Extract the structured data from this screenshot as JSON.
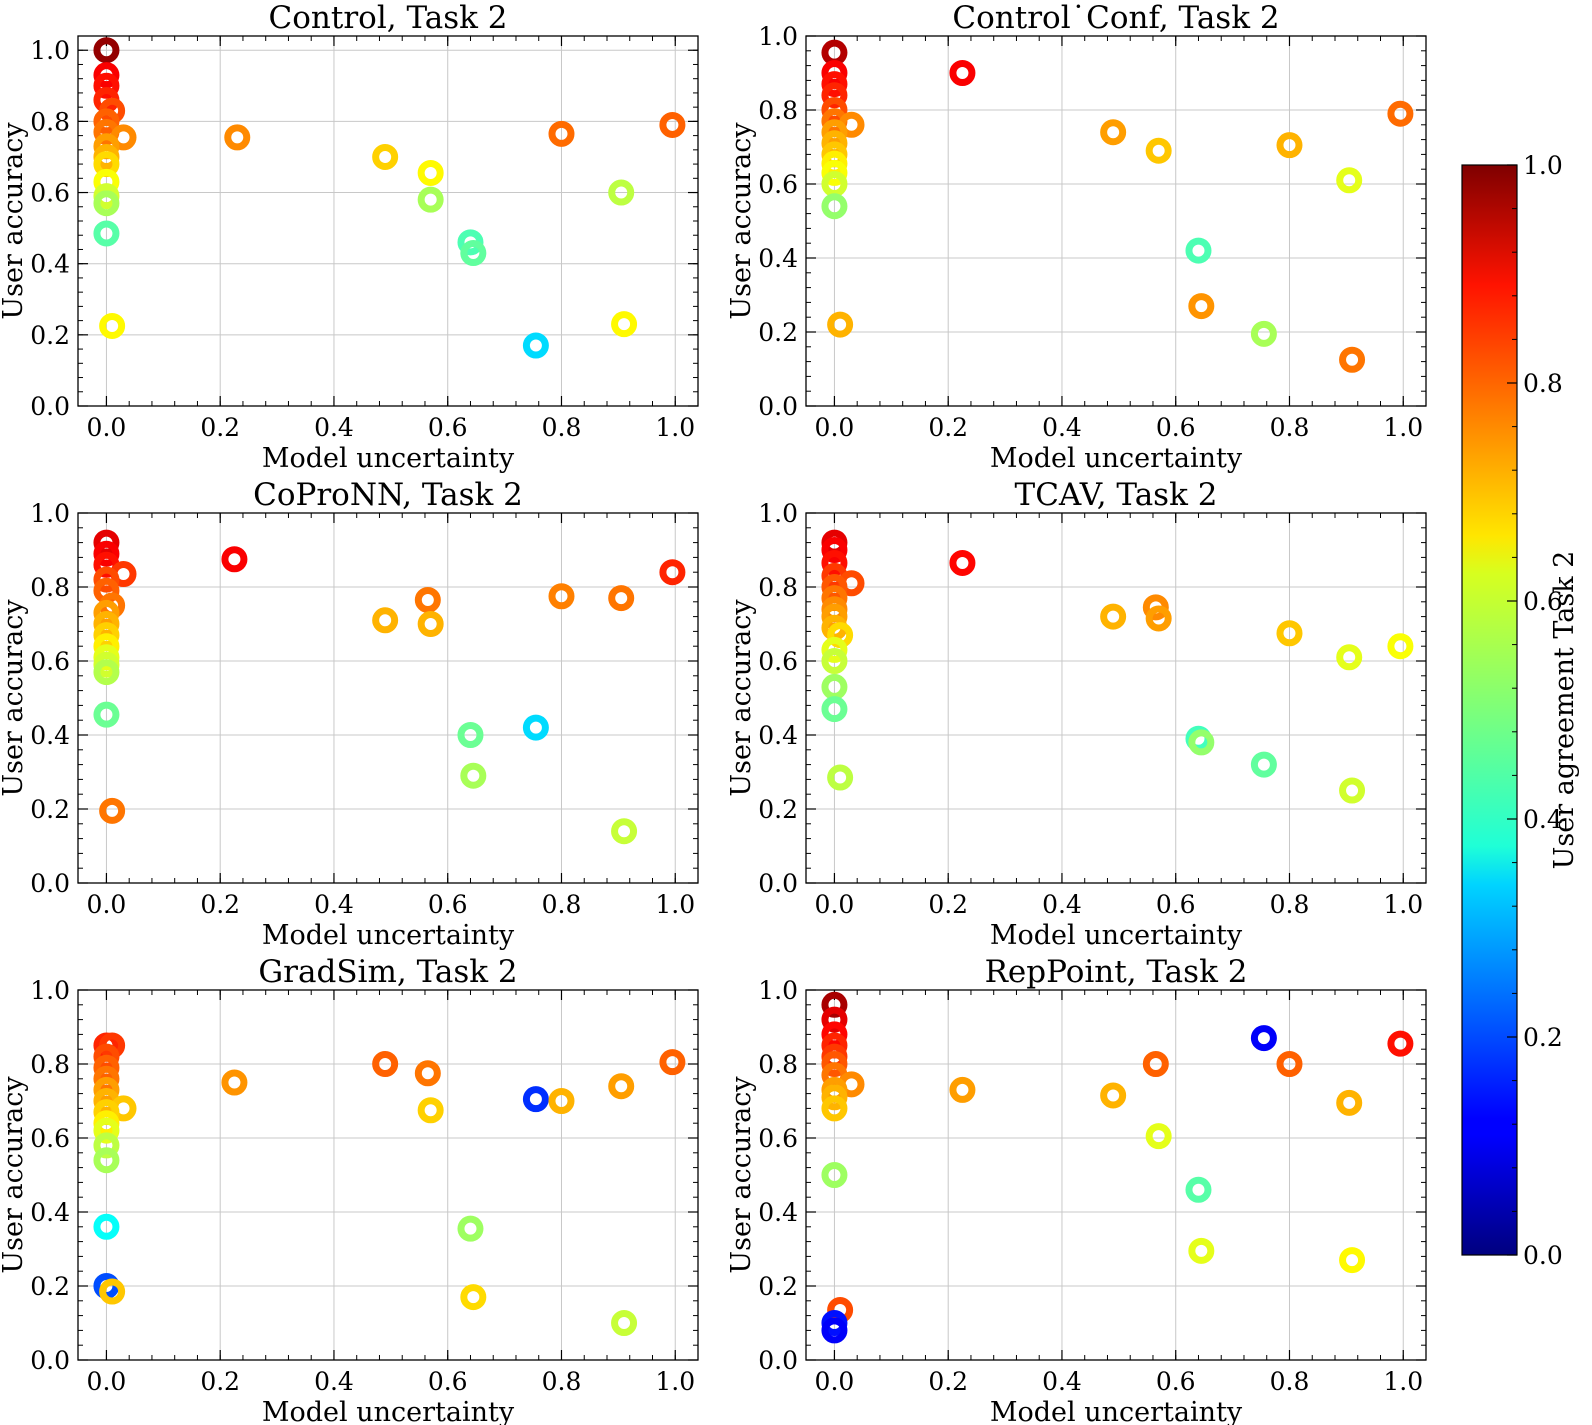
{
  "chart_data": [
    {
      "type": "scatter",
      "title": "Control, Task 2",
      "xlabel": "Model uncertainty",
      "ylabel": "User accuracy",
      "xlim": [
        -0.05,
        1.04
      ],
      "ylim": [
        0.0,
        1.04
      ],
      "xticks": [
        "0.0",
        "0.2",
        "0.4",
        "0.6",
        "0.8",
        "1.0"
      ],
      "yticks": [
        "0.0",
        "0.2",
        "0.4",
        "0.6",
        "0.8",
        "1.0"
      ],
      "grid": true,
      "points": [
        {
          "x": 0.0,
          "y": 1.0,
          "c": 0.98
        },
        {
          "x": 0.0,
          "y": 0.93,
          "c": 0.88
        },
        {
          "x": 0.0,
          "y": 0.9,
          "c": 0.86
        },
        {
          "x": 0.0,
          "y": 0.86,
          "c": 0.84
        },
        {
          "x": 0.01,
          "y": 0.83,
          "c": 0.8
        },
        {
          "x": 0.0,
          "y": 0.8,
          "c": 0.78
        },
        {
          "x": 0.0,
          "y": 0.77,
          "c": 0.76
        },
        {
          "x": 0.03,
          "y": 0.755,
          "c": 0.74
        },
        {
          "x": 0.0,
          "y": 0.73,
          "c": 0.72
        },
        {
          "x": 0.0,
          "y": 0.7,
          "c": 0.7
        },
        {
          "x": 0.0,
          "y": 0.68,
          "c": 0.66
        },
        {
          "x": 0.0,
          "y": 0.63,
          "c": 0.62
        },
        {
          "x": 0.0,
          "y": 0.59,
          "c": 0.58
        },
        {
          "x": 0.0,
          "y": 0.57,
          "c": 0.54
        },
        {
          "x": 0.0,
          "y": 0.485,
          "c": 0.46
        },
        {
          "x": 0.01,
          "y": 0.225,
          "c": 0.63
        },
        {
          "x": 0.23,
          "y": 0.755,
          "c": 0.74
        },
        {
          "x": 0.49,
          "y": 0.7,
          "c": 0.67
        },
        {
          "x": 0.57,
          "y": 0.655,
          "c": 0.63
        },
        {
          "x": 0.57,
          "y": 0.58,
          "c": 0.54
        },
        {
          "x": 0.64,
          "y": 0.46,
          "c": 0.45
        },
        {
          "x": 0.645,
          "y": 0.43,
          "c": 0.47
        },
        {
          "x": 0.755,
          "y": 0.17,
          "c": 0.34
        },
        {
          "x": 0.8,
          "y": 0.765,
          "c": 0.77
        },
        {
          "x": 0.905,
          "y": 0.6,
          "c": 0.56
        },
        {
          "x": 0.91,
          "y": 0.23,
          "c": 0.63
        },
        {
          "x": 0.995,
          "y": 0.79,
          "c": 0.78
        }
      ]
    },
    {
      "type": "scatter",
      "title": "Control˙Conf, Task 2",
      "xlabel": "Model uncertainty",
      "ylabel": "User accuracy",
      "xlim": [
        -0.05,
        1.04
      ],
      "ylim": [
        0.0,
        1.0
      ],
      "xticks": [
        "0.0",
        "0.2",
        "0.4",
        "0.6",
        "0.8",
        "1.0"
      ],
      "yticks": [
        "0.0",
        "0.2",
        "0.4",
        "0.6",
        "0.8",
        "1.0"
      ],
      "grid": true,
      "points": [
        {
          "x": 0.0,
          "y": 0.955,
          "c": 0.95
        },
        {
          "x": 0.0,
          "y": 0.9,
          "c": 0.88
        },
        {
          "x": 0.0,
          "y": 0.87,
          "c": 0.86
        },
        {
          "x": 0.0,
          "y": 0.84,
          "c": 0.84
        },
        {
          "x": 0.0,
          "y": 0.8,
          "c": 0.8
        },
        {
          "x": 0.0,
          "y": 0.77,
          "c": 0.76
        },
        {
          "x": 0.03,
          "y": 0.76,
          "c": 0.74
        },
        {
          "x": 0.0,
          "y": 0.74,
          "c": 0.72
        },
        {
          "x": 0.0,
          "y": 0.71,
          "c": 0.7
        },
        {
          "x": 0.0,
          "y": 0.68,
          "c": 0.68
        },
        {
          "x": 0.0,
          "y": 0.655,
          "c": 0.64
        },
        {
          "x": 0.0,
          "y": 0.63,
          "c": 0.62
        },
        {
          "x": 0.0,
          "y": 0.6,
          "c": 0.58
        },
        {
          "x": 0.0,
          "y": 0.54,
          "c": 0.52
        },
        {
          "x": 0.01,
          "y": 0.22,
          "c": 0.7
        },
        {
          "x": 0.225,
          "y": 0.9,
          "c": 0.88
        },
        {
          "x": 0.49,
          "y": 0.74,
          "c": 0.72
        },
        {
          "x": 0.57,
          "y": 0.69,
          "c": 0.68
        },
        {
          "x": 0.64,
          "y": 0.42,
          "c": 0.45
        },
        {
          "x": 0.645,
          "y": 0.27,
          "c": 0.73
        },
        {
          "x": 0.755,
          "y": 0.195,
          "c": 0.54
        },
        {
          "x": 0.8,
          "y": 0.705,
          "c": 0.7
        },
        {
          "x": 0.905,
          "y": 0.61,
          "c": 0.6
        },
        {
          "x": 0.91,
          "y": 0.125,
          "c": 0.76
        },
        {
          "x": 0.995,
          "y": 0.79,
          "c": 0.77
        }
      ]
    },
    {
      "type": "scatter",
      "title": "CoProNN, Task 2",
      "xlabel": "Model uncertainty",
      "ylabel": "User accuracy",
      "xlim": [
        -0.05,
        1.04
      ],
      "ylim": [
        0.0,
        1.0
      ],
      "xticks": [
        "0.0",
        "0.2",
        "0.4",
        "0.6",
        "0.8",
        "1.0"
      ],
      "yticks": [
        "0.0",
        "0.2",
        "0.4",
        "0.6",
        "0.8",
        "1.0"
      ],
      "grid": true,
      "points": [
        {
          "x": 0.0,
          "y": 0.92,
          "c": 0.9
        },
        {
          "x": 0.0,
          "y": 0.89,
          "c": 0.88
        },
        {
          "x": 0.0,
          "y": 0.86,
          "c": 0.86
        },
        {
          "x": 0.03,
          "y": 0.835,
          "c": 0.82
        },
        {
          "x": 0.0,
          "y": 0.82,
          "c": 0.8
        },
        {
          "x": 0.0,
          "y": 0.79,
          "c": 0.78
        },
        {
          "x": 0.01,
          "y": 0.75,
          "c": 0.76
        },
        {
          "x": 0.0,
          "y": 0.73,
          "c": 0.72
        },
        {
          "x": 0.0,
          "y": 0.7,
          "c": 0.7
        },
        {
          "x": 0.0,
          "y": 0.67,
          "c": 0.67
        },
        {
          "x": 0.0,
          "y": 0.64,
          "c": 0.64
        },
        {
          "x": 0.0,
          "y": 0.61,
          "c": 0.6
        },
        {
          "x": 0.0,
          "y": 0.59,
          "c": 0.58
        },
        {
          "x": 0.0,
          "y": 0.57,
          "c": 0.55
        },
        {
          "x": 0.0,
          "y": 0.455,
          "c": 0.48
        },
        {
          "x": 0.01,
          "y": 0.195,
          "c": 0.76
        },
        {
          "x": 0.225,
          "y": 0.875,
          "c": 0.88
        },
        {
          "x": 0.49,
          "y": 0.71,
          "c": 0.7
        },
        {
          "x": 0.565,
          "y": 0.765,
          "c": 0.76
        },
        {
          "x": 0.57,
          "y": 0.7,
          "c": 0.7
        },
        {
          "x": 0.64,
          "y": 0.4,
          "c": 0.48
        },
        {
          "x": 0.645,
          "y": 0.29,
          "c": 0.54
        },
        {
          "x": 0.755,
          "y": 0.42,
          "c": 0.34
        },
        {
          "x": 0.8,
          "y": 0.775,
          "c": 0.75
        },
        {
          "x": 0.905,
          "y": 0.77,
          "c": 0.76
        },
        {
          "x": 0.91,
          "y": 0.14,
          "c": 0.57
        },
        {
          "x": 0.995,
          "y": 0.84,
          "c": 0.84
        }
      ]
    },
    {
      "type": "scatter",
      "title": "TCAV, Task 2",
      "xlabel": "Model uncertainty",
      "ylabel": "User accuracy",
      "xlim": [
        -0.05,
        1.04
      ],
      "ylim": [
        0.0,
        1.0
      ],
      "xticks": [
        "0.0",
        "0.2",
        "0.4",
        "0.6",
        "0.8",
        "1.0"
      ],
      "yticks": [
        "0.0",
        "0.2",
        "0.4",
        "0.6",
        "0.8",
        "1.0"
      ],
      "grid": true,
      "points": [
        {
          "x": 0.0,
          "y": 0.92,
          "c": 0.9
        },
        {
          "x": 0.0,
          "y": 0.9,
          "c": 0.88
        },
        {
          "x": 0.0,
          "y": 0.865,
          "c": 0.86
        },
        {
          "x": 0.0,
          "y": 0.83,
          "c": 0.82
        },
        {
          "x": 0.03,
          "y": 0.81,
          "c": 0.8
        },
        {
          "x": 0.0,
          "y": 0.8,
          "c": 0.79
        },
        {
          "x": 0.0,
          "y": 0.77,
          "c": 0.76
        },
        {
          "x": 0.0,
          "y": 0.74,
          "c": 0.74
        },
        {
          "x": 0.0,
          "y": 0.72,
          "c": 0.72
        },
        {
          "x": 0.0,
          "y": 0.69,
          "c": 0.7
        },
        {
          "x": 0.01,
          "y": 0.67,
          "c": 0.66
        },
        {
          "x": 0.0,
          "y": 0.63,
          "c": 0.6
        },
        {
          "x": 0.0,
          "y": 0.6,
          "c": 0.57
        },
        {
          "x": 0.0,
          "y": 0.53,
          "c": 0.53
        },
        {
          "x": 0.0,
          "y": 0.47,
          "c": 0.48
        },
        {
          "x": 0.01,
          "y": 0.285,
          "c": 0.56
        },
        {
          "x": 0.225,
          "y": 0.865,
          "c": 0.87
        },
        {
          "x": 0.49,
          "y": 0.72,
          "c": 0.7
        },
        {
          "x": 0.565,
          "y": 0.745,
          "c": 0.74
        },
        {
          "x": 0.57,
          "y": 0.715,
          "c": 0.72
        },
        {
          "x": 0.64,
          "y": 0.39,
          "c": 0.44
        },
        {
          "x": 0.645,
          "y": 0.38,
          "c": 0.52
        },
        {
          "x": 0.755,
          "y": 0.32,
          "c": 0.47
        },
        {
          "x": 0.8,
          "y": 0.675,
          "c": 0.68
        },
        {
          "x": 0.905,
          "y": 0.61,
          "c": 0.6
        },
        {
          "x": 0.91,
          "y": 0.25,
          "c": 0.58
        },
        {
          "x": 0.995,
          "y": 0.64,
          "c": 0.62
        }
      ]
    },
    {
      "type": "scatter",
      "title": "GradSim, Task 2",
      "xlabel": "Model uncertainty",
      "ylabel": "User accuracy",
      "xlim": [
        -0.05,
        1.04
      ],
      "ylim": [
        0.0,
        1.0
      ],
      "xticks": [
        "0.0",
        "0.2",
        "0.4",
        "0.6",
        "0.8",
        "1.0"
      ],
      "yticks": [
        "0.0",
        "0.2",
        "0.4",
        "0.6",
        "0.8",
        "1.0"
      ],
      "grid": true,
      "points": [
        {
          "x": 0.0,
          "y": 0.85,
          "c": 0.84
        },
        {
          "x": 0.01,
          "y": 0.85,
          "c": 0.82
        },
        {
          "x": 0.0,
          "y": 0.82,
          "c": 0.8
        },
        {
          "x": 0.0,
          "y": 0.79,
          "c": 0.78
        },
        {
          "x": 0.0,
          "y": 0.76,
          "c": 0.76
        },
        {
          "x": 0.0,
          "y": 0.73,
          "c": 0.72
        },
        {
          "x": 0.0,
          "y": 0.7,
          "c": 0.7
        },
        {
          "x": 0.03,
          "y": 0.68,
          "c": 0.68
        },
        {
          "x": 0.0,
          "y": 0.67,
          "c": 0.67
        },
        {
          "x": 0.0,
          "y": 0.64,
          "c": 0.64
        },
        {
          "x": 0.0,
          "y": 0.62,
          "c": 0.6
        },
        {
          "x": 0.0,
          "y": 0.58,
          "c": 0.56
        },
        {
          "x": 0.0,
          "y": 0.54,
          "c": 0.54
        },
        {
          "x": 0.0,
          "y": 0.36,
          "c": 0.38
        },
        {
          "x": 0.0,
          "y": 0.2,
          "c": 0.2
        },
        {
          "x": 0.01,
          "y": 0.185,
          "c": 0.68
        },
        {
          "x": 0.225,
          "y": 0.75,
          "c": 0.73
        },
        {
          "x": 0.49,
          "y": 0.8,
          "c": 0.78
        },
        {
          "x": 0.565,
          "y": 0.775,
          "c": 0.76
        },
        {
          "x": 0.57,
          "y": 0.675,
          "c": 0.67
        },
        {
          "x": 0.64,
          "y": 0.355,
          "c": 0.53
        },
        {
          "x": 0.645,
          "y": 0.17,
          "c": 0.66
        },
        {
          "x": 0.755,
          "y": 0.705,
          "c": 0.17
        },
        {
          "x": 0.8,
          "y": 0.7,
          "c": 0.7
        },
        {
          "x": 0.905,
          "y": 0.74,
          "c": 0.72
        },
        {
          "x": 0.91,
          "y": 0.1,
          "c": 0.57
        },
        {
          "x": 0.995,
          "y": 0.805,
          "c": 0.78
        }
      ]
    },
    {
      "type": "scatter",
      "title": "RepPoint, Task 2",
      "xlabel": "Model uncertainty",
      "ylabel": "User accuracy",
      "xlim": [
        -0.05,
        1.04
      ],
      "ylim": [
        0.0,
        1.0
      ],
      "xticks": [
        "0.0",
        "0.2",
        "0.4",
        "0.6",
        "0.8",
        "1.0"
      ],
      "yticks": [
        "0.0",
        "0.2",
        "0.4",
        "0.6",
        "0.8",
        "1.0"
      ],
      "grid": true,
      "points": [
        {
          "x": 0.0,
          "y": 0.96,
          "c": 0.96
        },
        {
          "x": 0.0,
          "y": 0.92,
          "c": 0.9
        },
        {
          "x": 0.0,
          "y": 0.88,
          "c": 0.87
        },
        {
          "x": 0.0,
          "y": 0.85,
          "c": 0.84
        },
        {
          "x": 0.0,
          "y": 0.82,
          "c": 0.82
        },
        {
          "x": 0.0,
          "y": 0.8,
          "c": 0.79
        },
        {
          "x": 0.0,
          "y": 0.77,
          "c": 0.76
        },
        {
          "x": 0.03,
          "y": 0.745,
          "c": 0.74
        },
        {
          "x": 0.0,
          "y": 0.73,
          "c": 0.72
        },
        {
          "x": 0.0,
          "y": 0.71,
          "c": 0.7
        },
        {
          "x": 0.0,
          "y": 0.68,
          "c": 0.68
        },
        {
          "x": 0.0,
          "y": 0.5,
          "c": 0.53
        },
        {
          "x": 0.01,
          "y": 0.135,
          "c": 0.8
        },
        {
          "x": 0.0,
          "y": 0.1,
          "c": 0.14
        },
        {
          "x": 0.0,
          "y": 0.08,
          "c": 0.12
        },
        {
          "x": 0.225,
          "y": 0.73,
          "c": 0.72
        },
        {
          "x": 0.49,
          "y": 0.715,
          "c": 0.7
        },
        {
          "x": 0.565,
          "y": 0.8,
          "c": 0.78
        },
        {
          "x": 0.57,
          "y": 0.605,
          "c": 0.6
        },
        {
          "x": 0.64,
          "y": 0.46,
          "c": 0.46
        },
        {
          "x": 0.645,
          "y": 0.295,
          "c": 0.6
        },
        {
          "x": 0.755,
          "y": 0.87,
          "c": 0.12
        },
        {
          "x": 0.8,
          "y": 0.8,
          "c": 0.78
        },
        {
          "x": 0.905,
          "y": 0.695,
          "c": 0.7
        },
        {
          "x": 0.91,
          "y": 0.27,
          "c": 0.63
        },
        {
          "x": 0.995,
          "y": 0.855,
          "c": 0.86
        }
      ]
    }
  ],
  "colorbar": {
    "label": "User agreement Task 2",
    "colormap": "jet",
    "range": [
      0.0,
      1.0
    ],
    "ticks": [
      "0.0",
      "0.2",
      "0.4",
      "0.6",
      "0.8",
      "1.0"
    ]
  }
}
